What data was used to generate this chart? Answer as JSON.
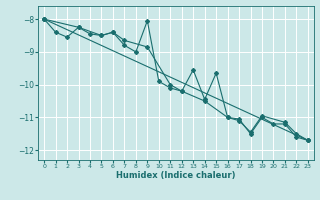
{
  "xlabel": "Humidex (Indice chaleur)",
  "ylabel": "",
  "xlim": [
    -0.5,
    23.5
  ],
  "ylim": [
    -12.3,
    -7.6
  ],
  "yticks": [
    -12,
    -11,
    -10,
    -9,
    -8
  ],
  "xticks": [
    0,
    1,
    2,
    3,
    4,
    5,
    6,
    7,
    8,
    9,
    10,
    11,
    12,
    13,
    14,
    15,
    16,
    17,
    18,
    19,
    20,
    21,
    22,
    23
  ],
  "bg_color": "#cce8e8",
  "grid_color": "#ffffff",
  "line_color": "#1a6e6e",
  "line1_x": [
    0,
    1,
    2,
    3,
    4,
    5,
    6,
    7,
    8,
    9,
    10,
    11,
    12,
    13,
    14,
    15,
    16,
    17,
    18,
    19,
    20,
    21,
    22,
    23
  ],
  "line1_y": [
    -8.0,
    -8.4,
    -8.55,
    -8.25,
    -8.45,
    -8.5,
    -8.4,
    -8.8,
    -9.0,
    -8.05,
    -9.9,
    -10.1,
    -10.2,
    -9.55,
    -10.45,
    -9.65,
    -11.0,
    -11.05,
    -11.5,
    -11.0,
    -11.2,
    -11.2,
    -11.6,
    -11.7
  ],
  "line2_x": [
    0,
    3,
    5,
    6,
    7,
    9,
    11,
    12,
    14,
    16,
    17,
    18,
    19,
    21,
    22,
    23
  ],
  "line2_y": [
    -8.0,
    -8.25,
    -8.5,
    -8.4,
    -8.65,
    -8.85,
    -10.0,
    -10.2,
    -10.5,
    -11.0,
    -11.1,
    -11.45,
    -10.95,
    -11.15,
    -11.5,
    -11.7
  ],
  "line3_x": [
    0,
    23
  ],
  "line3_y": [
    -8.0,
    -11.7
  ]
}
